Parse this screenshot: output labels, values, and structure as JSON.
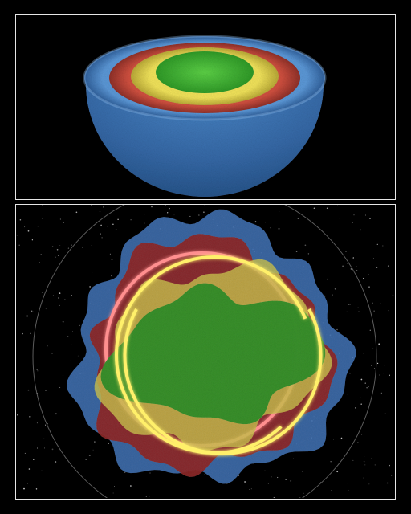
{
  "figure": {
    "panels": [
      {
        "id": "top",
        "layers": [
          {
            "name": "blue",
            "color": "#3f7fc2"
          },
          {
            "name": "red",
            "color": "#c2463a"
          },
          {
            "name": "yellow",
            "color": "#e6d648"
          },
          {
            "name": "green",
            "color": "#3fae2f"
          }
        ]
      },
      {
        "id": "bottom",
        "layers": [
          {
            "name": "blue",
            "color": "#3a6fb4"
          },
          {
            "name": "red",
            "color": "#8e1f1f"
          },
          {
            "name": "yellow",
            "color": "#c9c043"
          },
          {
            "name": "green",
            "color": "#2f8f25"
          }
        ],
        "ring_colors": [
          "#ff8f8f",
          "#fff06a"
        ],
        "star_field": true
      }
    ]
  }
}
